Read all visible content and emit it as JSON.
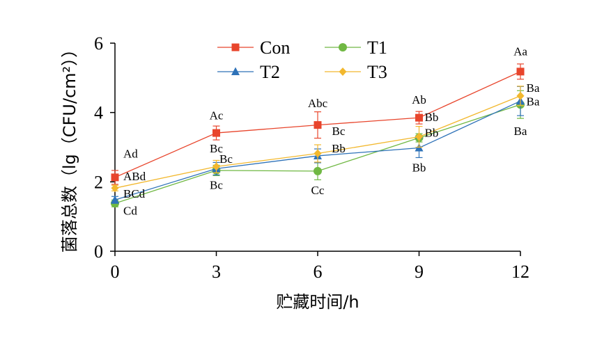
{
  "chart_data": {
    "type": "line",
    "title": "",
    "xlabel": "贮藏时间/h",
    "ylabel": "菌落总数（lg（CFU/cm²））",
    "x": [
      0,
      3,
      6,
      9,
      12
    ],
    "xlim": [
      0,
      12
    ],
    "ylim": [
      0,
      6
    ],
    "xticks": [
      "0",
      "3",
      "6",
      "9",
      "12"
    ],
    "yticks": [
      "0",
      "2",
      "4",
      "6"
    ],
    "grid": false,
    "legend_position": "top-center",
    "series": [
      {
        "name": "Con",
        "color": "#e8452c",
        "marker": "square",
        "values": [
          2.13,
          3.41,
          3.64,
          3.85,
          5.18
        ],
        "errors": [
          0.2,
          0.2,
          0.38,
          0.18,
          0.22
        ]
      },
      {
        "name": "T1",
        "color": "#70b843",
        "marker": "circle",
        "values": [
          1.38,
          2.33,
          2.31,
          3.27,
          4.23
        ],
        "errors": [
          0.1,
          0.15,
          0.25,
          0.12,
          0.4
        ]
      },
      {
        "name": "T2",
        "color": "#2e72b8",
        "marker": "triangle",
        "values": [
          1.48,
          2.38,
          2.75,
          2.98,
          4.33
        ],
        "errors": [
          0.1,
          0.18,
          0.2,
          0.28,
          0.42
        ]
      },
      {
        "name": "T3",
        "color": "#f2b82e",
        "marker": "diamond",
        "values": [
          1.82,
          2.44,
          2.82,
          3.3,
          4.48
        ],
        "errors": [
          0.08,
          0.18,
          0.25,
          0.3,
          0.28
        ]
      }
    ],
    "annotations": [
      {
        "text": "Ad",
        "x": 0,
        "y": 2.7
      },
      {
        "text": "ABd",
        "x": 0,
        "y": 2.05
      },
      {
        "text": "BCd",
        "x": 0,
        "y": 1.55
      },
      {
        "text": "Cd",
        "x": 0,
        "y": 1.05
      },
      {
        "text": "Ac",
        "x": 3,
        "y": 3.8
      },
      {
        "text": "Bc",
        "x": 3,
        "y": 2.85
      },
      {
        "text": "Bc",
        "x": 3,
        "y": 2.55
      },
      {
        "text": "Bc",
        "x": 3,
        "y": 1.8
      },
      {
        "text": "Abc",
        "x": 6,
        "y": 4.15
      },
      {
        "text": "Bc",
        "x": 6,
        "y": 3.35
      },
      {
        "text": "Bb",
        "x": 6,
        "y": 2.85
      },
      {
        "text": "Cc",
        "x": 6,
        "y": 1.65
      },
      {
        "text": "Ab",
        "x": 9,
        "y": 4.25
      },
      {
        "text": "Bb",
        "x": 9,
        "y": 3.75
      },
      {
        "text": "Bb",
        "x": 9,
        "y": 3.3
      },
      {
        "text": "Bb",
        "x": 9,
        "y": 2.3
      },
      {
        "text": "Aa",
        "x": 12,
        "y": 5.65
      },
      {
        "text": "Ba",
        "x": 12,
        "y": 4.6
      },
      {
        "text": "Ba",
        "x": 12,
        "y": 4.2
      },
      {
        "text": "Ba",
        "x": 12,
        "y": 3.35
      }
    ]
  }
}
